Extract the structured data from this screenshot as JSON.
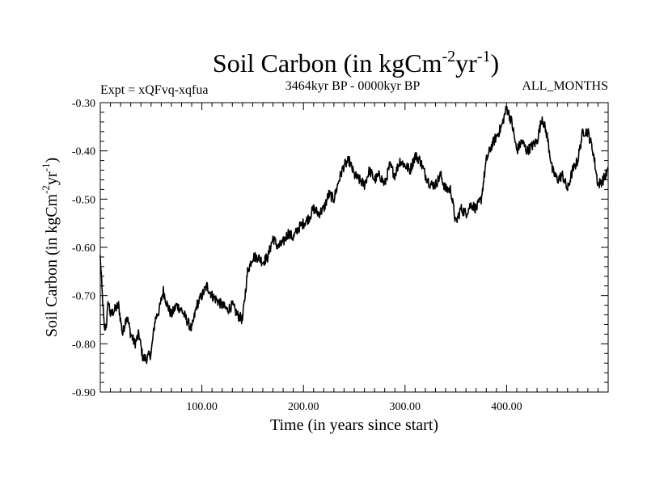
{
  "chart_data": {
    "type": "line",
    "title": {
      "main": "Soil Carbon (in kgCm",
      "sup1": "-2",
      "mid": "yr",
      "sup2": "-1",
      "end": ")"
    },
    "subtitle_left": "Expt = xQFvq-xqfua",
    "subtitle_center": "3464kyr BP - 0000kyr BP",
    "subtitle_right": "ALL_MONTHS",
    "xlabel": "Time (in years since start)",
    "ylabel": {
      "main": "Soil Carbon (in kgCm",
      "sup1": "-2",
      "mid": "yr",
      "sup2": "-1",
      "end": ")"
    },
    "xlim": [
      0,
      500
    ],
    "ylim": [
      -0.9,
      -0.3
    ],
    "x_ticks": [
      100,
      200,
      300,
      400
    ],
    "x_tick_labels": [
      "100.00",
      "200.00",
      "300.00",
      "400.00"
    ],
    "y_ticks": [
      -0.9,
      -0.8,
      -0.7,
      -0.6,
      -0.5,
      -0.4,
      -0.3
    ],
    "y_tick_labels": [
      "-0.90",
      "-0.80",
      "-0.70",
      "-0.60",
      "-0.50",
      "-0.40",
      "-0.30"
    ],
    "series": [
      {
        "name": "Soil Carbon",
        "color": "#000000",
        "x": [
          0,
          2,
          4,
          6,
          8,
          10,
          14,
          18,
          22,
          26,
          30,
          34,
          38,
          42,
          46,
          50,
          54,
          58,
          62,
          66,
          70,
          75,
          80,
          85,
          90,
          95,
          100,
          105,
          110,
          115,
          120,
          125,
          130,
          135,
          140,
          145,
          150,
          155,
          160,
          165,
          170,
          175,
          180,
          185,
          190,
          195,
          200,
          205,
          210,
          215,
          220,
          225,
          230,
          235,
          240,
          245,
          250,
          255,
          260,
          265,
          270,
          275,
          280,
          285,
          290,
          295,
          300,
          305,
          310,
          315,
          320,
          325,
          330,
          335,
          340,
          345,
          350,
          355,
          360,
          365,
          370,
          375,
          380,
          385,
          390,
          395,
          400,
          405,
          410,
          415,
          420,
          425,
          430,
          435,
          440,
          445,
          450,
          455,
          460,
          465,
          470,
          475,
          480,
          485,
          490,
          495,
          500
        ],
        "values": [
          -0.62,
          -0.7,
          -0.77,
          -0.76,
          -0.71,
          -0.74,
          -0.73,
          -0.72,
          -0.78,
          -0.74,
          -0.78,
          -0.8,
          -0.78,
          -0.83,
          -0.83,
          -0.82,
          -0.75,
          -0.73,
          -0.69,
          -0.72,
          -0.74,
          -0.72,
          -0.73,
          -0.75,
          -0.77,
          -0.72,
          -0.7,
          -0.68,
          -0.7,
          -0.71,
          -0.72,
          -0.73,
          -0.72,
          -0.74,
          -0.75,
          -0.65,
          -0.62,
          -0.62,
          -0.63,
          -0.62,
          -0.58,
          -0.6,
          -0.59,
          -0.57,
          -0.58,
          -0.56,
          -0.55,
          -0.54,
          -0.52,
          -0.53,
          -0.52,
          -0.49,
          -0.5,
          -0.46,
          -0.43,
          -0.42,
          -0.45,
          -0.46,
          -0.47,
          -0.44,
          -0.46,
          -0.45,
          -0.47,
          -0.43,
          -0.45,
          -0.42,
          -0.43,
          -0.44,
          -0.41,
          -0.42,
          -0.45,
          -0.47,
          -0.47,
          -0.45,
          -0.48,
          -0.48,
          -0.55,
          -0.52,
          -0.53,
          -0.51,
          -0.52,
          -0.5,
          -0.42,
          -0.39,
          -0.37,
          -0.35,
          -0.31,
          -0.34,
          -0.4,
          -0.38,
          -0.4,
          -0.39,
          -0.38,
          -0.33,
          -0.37,
          -0.44,
          -0.46,
          -0.45,
          -0.48,
          -0.44,
          -0.42,
          -0.36,
          -0.36,
          -0.4,
          -0.47,
          -0.46,
          -0.44
        ]
      }
    ]
  }
}
